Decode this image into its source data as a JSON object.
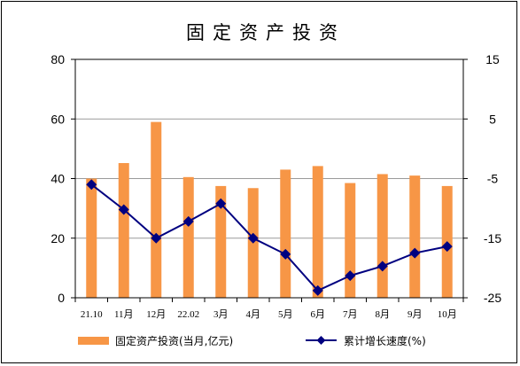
{
  "chart_data": {
    "type": "bar+line",
    "title": "固定资产投资",
    "categories": [
      "21.10",
      "11月",
      "12月",
      "22.02",
      "3月",
      "4月",
      "5月",
      "6月",
      "7月",
      "8月",
      "9月",
      "10月"
    ],
    "series": [
      {
        "name": "固定资产投资(当月,亿元)",
        "type": "bar",
        "axis": "left",
        "color": "#f79646",
        "values": [
          40,
          45.2,
          59,
          40.5,
          37.5,
          36.8,
          43,
          44.2,
          38.5,
          41.5,
          41,
          37.5
        ]
      },
      {
        "name": "累计增长速度(%)",
        "type": "line",
        "axis": "right",
        "color": "#000080",
        "values": [
          -6,
          -10.2,
          -15,
          -12.2,
          -9.2,
          -15,
          -17.7,
          -23.8,
          -21.3,
          -19.7,
          -17.5,
          -16.4
        ]
      }
    ],
    "y_left": {
      "ylim": [
        0,
        80
      ],
      "ticks": [
        0,
        20,
        40,
        60,
        80
      ]
    },
    "y_right": {
      "ylim": [
        -25,
        15
      ],
      "ticks": [
        "15",
        "5",
        "-5",
        "-15",
        "-25"
      ]
    },
    "grid": true,
    "legend_position": "bottom"
  }
}
